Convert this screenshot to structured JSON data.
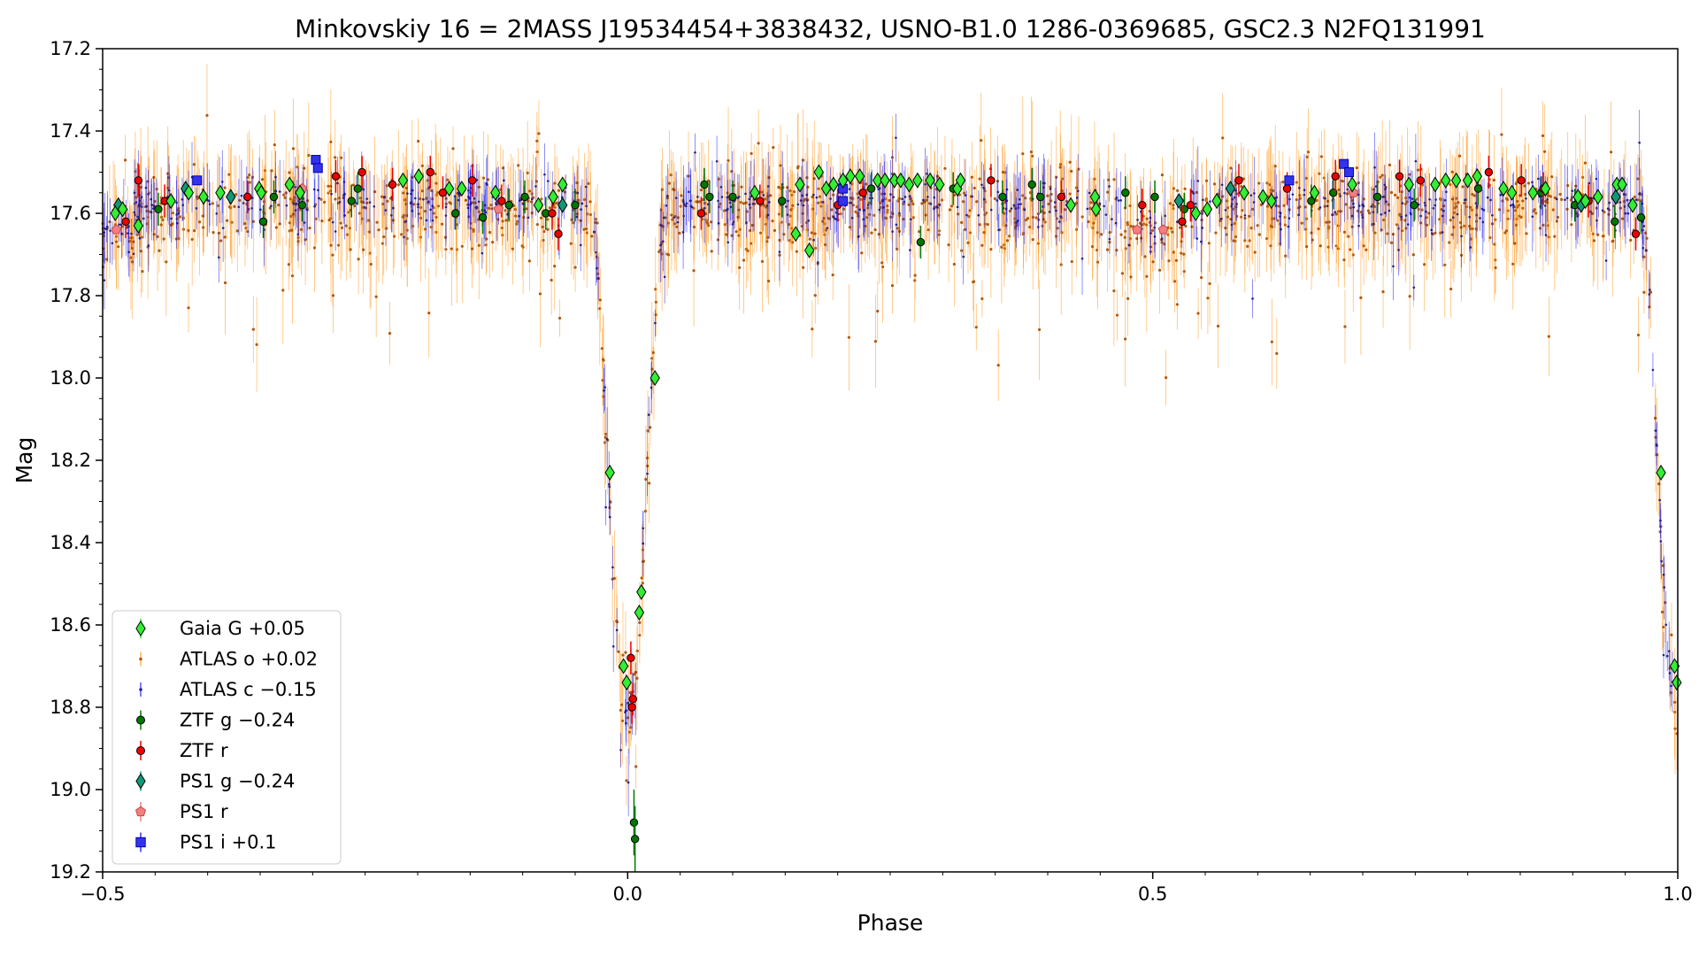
{
  "chart_data": {
    "type": "scatter",
    "title": "Minkovskiy 16 = 2MASS J19534454+3838432, USNO-B1.0 1286-0369685, GSC2.3 N2FQ131991",
    "xlabel": "Phase",
    "ylabel": "Mag",
    "xlim": [
      -0.5,
      1.0
    ],
    "ylim": [
      17.2,
      19.2
    ],
    "y_inverted": true,
    "x_ticks": [
      -0.5,
      0.0,
      0.5,
      1.0
    ],
    "x_tick_labels": [
      "−0.5",
      "0.0",
      "0.5",
      "1.0"
    ],
    "y_ticks": [
      17.2,
      17.4,
      17.6,
      17.8,
      18.0,
      18.2,
      18.4,
      18.6,
      18.8,
      19.0,
      19.2
    ],
    "y_tick_labels": [
      "17.2",
      "17.4",
      "17.6",
      "17.8",
      "18.0",
      "18.2",
      "18.4",
      "18.6",
      "18.8",
      "19.0",
      "19.2"
    ],
    "x_minor_step": 0.05,
    "y_minor_step": 0.05,
    "grid": false,
    "legend_position": "lower-left",
    "light_curve": {
      "baseline_mag": 17.56,
      "eclipse_depth_mag": 1.25,
      "eclipse_phase": 0.0,
      "eclipse_halfwidth": 0.035,
      "secondary_dip_mag": 0.06,
      "atlas_o_scatter_mag": 0.18,
      "atlas_c_scatter_mag": 0.1
    },
    "series": [
      {
        "name": "Gaia G +0.05",
        "marker": "diamond",
        "color": "#33ee33",
        "edge": "#000000",
        "points": [
          [
            -0.488,
            17.6
          ],
          [
            -0.481,
            17.59
          ],
          [
            -0.466,
            17.63
          ],
          [
            -0.435,
            17.57
          ],
          [
            -0.418,
            17.55
          ],
          [
            -0.404,
            17.56
          ],
          [
            -0.388,
            17.55
          ],
          [
            -0.351,
            17.54
          ],
          [
            -0.349,
            17.55
          ],
          [
            -0.322,
            17.53
          ],
          [
            -0.312,
            17.55
          ],
          [
            -0.214,
            17.52
          ],
          [
            -0.199,
            17.51
          ],
          [
            -0.17,
            17.54
          ],
          [
            -0.158,
            17.54
          ],
          [
            -0.126,
            17.55
          ],
          [
            -0.085,
            17.58
          ],
          [
            -0.071,
            17.56
          ],
          [
            -0.062,
            17.53
          ],
          [
            -0.017,
            18.23
          ],
          [
            -0.004,
            18.7
          ],
          [
            -0.001,
            18.74
          ],
          [
            0.011,
            18.57
          ],
          [
            0.013,
            18.52
          ],
          [
            0.026,
            18.0
          ],
          [
            0.121,
            17.55
          ],
          [
            0.16,
            17.65
          ],
          [
            0.164,
            17.53
          ],
          [
            0.173,
            17.69
          ],
          [
            0.182,
            17.5
          ],
          [
            0.189,
            17.54
          ],
          [
            0.196,
            17.53
          ],
          [
            0.205,
            17.52
          ],
          [
            0.212,
            17.51
          ],
          [
            0.221,
            17.51
          ],
          [
            0.238,
            17.52
          ],
          [
            0.245,
            17.52
          ],
          [
            0.254,
            17.52
          ],
          [
            0.26,
            17.52
          ],
          [
            0.268,
            17.53
          ],
          [
            0.276,
            17.52
          ],
          [
            0.288,
            17.52
          ],
          [
            0.297,
            17.53
          ],
          [
            0.314,
            17.54
          ],
          [
            0.317,
            17.52
          ],
          [
            0.422,
            17.58
          ],
          [
            0.445,
            17.56
          ],
          [
            0.446,
            17.59
          ],
          [
            0.541,
            17.6
          ],
          [
            0.552,
            17.59
          ],
          [
            0.561,
            17.57
          ],
          [
            0.587,
            17.55
          ],
          [
            0.605,
            17.56
          ],
          [
            0.613,
            17.57
          ],
          [
            0.654,
            17.55
          ],
          [
            0.69,
            17.53
          ],
          [
            0.744,
            17.53
          ],
          [
            0.769,
            17.53
          ],
          [
            0.779,
            17.52
          ],
          [
            0.789,
            17.52
          ],
          [
            0.8,
            17.52
          ],
          [
            0.809,
            17.51
          ],
          [
            0.834,
            17.54
          ],
          [
            0.842,
            17.55
          ],
          [
            0.862,
            17.55
          ],
          [
            0.874,
            17.54
          ],
          [
            0.905,
            17.56
          ],
          [
            0.912,
            17.57
          ],
          [
            0.924,
            17.56
          ],
          [
            0.942,
            17.53
          ],
          [
            0.947,
            17.53
          ],
          [
            0.957,
            17.58
          ],
          [
            0.984,
            18.23
          ],
          [
            0.997,
            18.7
          ],
          [
            0.999,
            18.74
          ]
        ]
      },
      {
        "name": "ATLAS o +0.02",
        "marker": "dot-errorbar",
        "color": "#ff8c00",
        "generated": "dense-scatter"
      },
      {
        "name": "ATLAS c −0.15",
        "marker": "dot-errorbar",
        "color": "#0000ee",
        "generated": "dense-scatter"
      },
      {
        "name": "ZTF g −0.24",
        "marker": "circle",
        "color": "#007700",
        "edge": "#000000",
        "points": [
          [
            -0.447,
            17.59
          ],
          [
            -0.347,
            17.62
          ],
          [
            -0.337,
            17.56
          ],
          [
            -0.31,
            17.58
          ],
          [
            -0.263,
            17.57
          ],
          [
            -0.257,
            17.54
          ],
          [
            -0.164,
            17.6
          ],
          [
            -0.138,
            17.61
          ],
          [
            -0.113,
            17.58
          ],
          [
            -0.098,
            17.56
          ],
          [
            -0.078,
            17.6
          ],
          [
            -0.05,
            17.58
          ],
          [
            0.006,
            19.08
          ],
          [
            0.007,
            19.12
          ],
          [
            0.073,
            17.53
          ],
          [
            0.078,
            17.56
          ],
          [
            0.1,
            17.56
          ],
          [
            0.147,
            17.57
          ],
          [
            0.232,
            17.54
          ],
          [
            0.279,
            17.67
          ],
          [
            0.31,
            17.54
          ],
          [
            0.357,
            17.56
          ],
          [
            0.385,
            17.53
          ],
          [
            0.393,
            17.56
          ],
          [
            0.474,
            17.55
          ],
          [
            0.502,
            17.56
          ],
          [
            0.53,
            17.59
          ],
          [
            0.651,
            17.57
          ],
          [
            0.672,
            17.55
          ],
          [
            0.714,
            17.56
          ],
          [
            0.749,
            17.58
          ],
          [
            0.81,
            17.54
          ],
          [
            0.87,
            17.55
          ],
          [
            0.902,
            17.58
          ],
          [
            0.94,
            17.62
          ],
          [
            0.965,
            17.61
          ]
        ]
      },
      {
        "name": "ZTF r",
        "marker": "circle",
        "color": "#ee0000",
        "edge": "#000000",
        "points": [
          [
            -0.478,
            17.62
          ],
          [
            -0.466,
            17.52
          ],
          [
            -0.441,
            17.57
          ],
          [
            -0.362,
            17.56
          ],
          [
            -0.278,
            17.51
          ],
          [
            -0.253,
            17.5
          ],
          [
            -0.224,
            17.53
          ],
          [
            -0.188,
            17.5
          ],
          [
            -0.176,
            17.55
          ],
          [
            -0.148,
            17.52
          ],
          [
            -0.12,
            17.57
          ],
          [
            -0.072,
            17.6
          ],
          [
            -0.066,
            17.65
          ],
          [
            0.003,
            18.68
          ],
          [
            0.005,
            18.78
          ],
          [
            0.004,
            18.8
          ],
          [
            0.07,
            17.6
          ],
          [
            0.126,
            17.57
          ],
          [
            0.2,
            17.58
          ],
          [
            0.224,
            17.55
          ],
          [
            0.346,
            17.52
          ],
          [
            0.413,
            17.56
          ],
          [
            0.49,
            17.58
          ],
          [
            0.528,
            17.62
          ],
          [
            0.536,
            17.58
          ],
          [
            0.582,
            17.52
          ],
          [
            0.628,
            17.54
          ],
          [
            0.674,
            17.51
          ],
          [
            0.735,
            17.51
          ],
          [
            0.755,
            17.52
          ],
          [
            0.82,
            17.5
          ],
          [
            0.851,
            17.52
          ],
          [
            0.872,
            17.54
          ],
          [
            0.915,
            17.57
          ],
          [
            0.96,
            17.65
          ]
        ]
      },
      {
        "name": "PS1 g −0.24",
        "marker": "diamond",
        "color": "#119977",
        "edge": "#000000",
        "points": [
          [
            -0.485,
            17.58
          ],
          [
            -0.421,
            17.54
          ],
          [
            -0.378,
            17.56
          ],
          [
            -0.062,
            17.58
          ],
          [
            0.525,
            17.57
          ],
          [
            0.574,
            17.54
          ],
          [
            0.908,
            17.58
          ],
          [
            0.941,
            17.56
          ]
        ]
      },
      {
        "name": "PS1 r",
        "marker": "pentagon",
        "color": "#f08080",
        "edge": "#cc4444",
        "points": [
          [
            -0.487,
            17.64
          ],
          [
            -0.31,
            17.54
          ],
          [
            -0.123,
            17.59
          ],
          [
            0.485,
            17.64
          ],
          [
            0.51,
            17.64
          ],
          [
            0.691,
            17.55
          ]
        ]
      },
      {
        "name": "PS1 i +0.1",
        "marker": "square",
        "color": "#3333ee",
        "edge": "#0000aa",
        "points": [
          [
            -0.41,
            17.52
          ],
          [
            -0.297,
            17.47
          ],
          [
            -0.295,
            17.49
          ],
          [
            0.205,
            17.54
          ],
          [
            0.205,
            17.57
          ],
          [
            0.63,
            17.52
          ],
          [
            0.682,
            17.48
          ],
          [
            0.687,
            17.5
          ]
        ]
      }
    ]
  }
}
